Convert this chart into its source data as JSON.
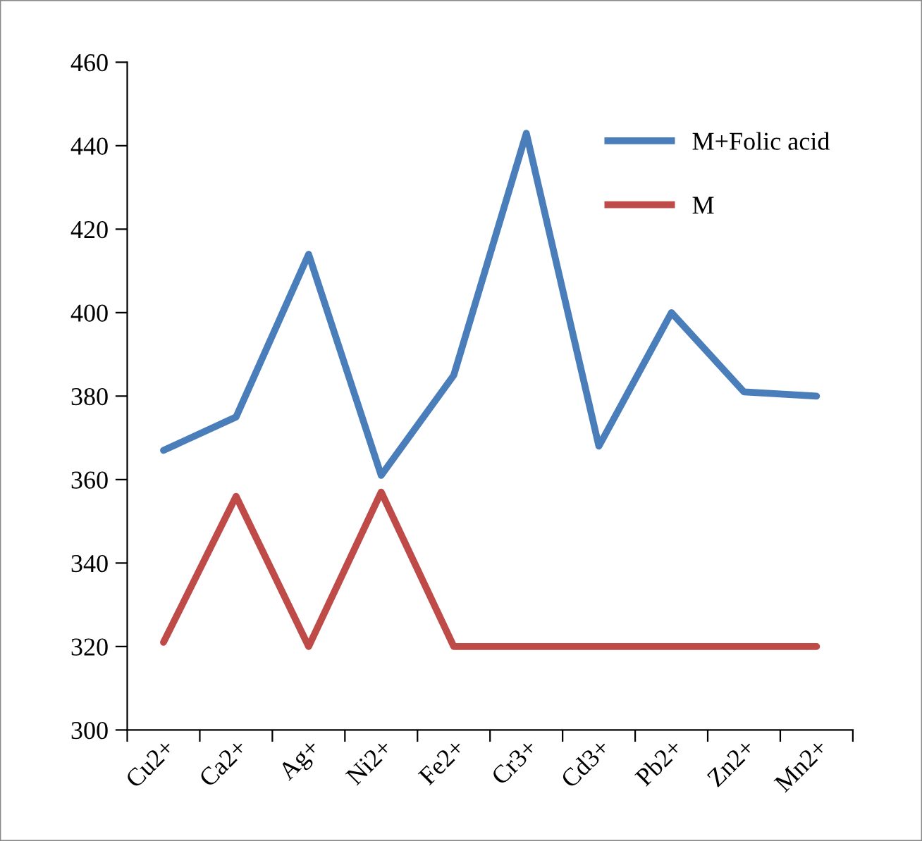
{
  "chart_data": {
    "type": "line",
    "categories": [
      "Cu2+",
      "Ca2+",
      "Ag+",
      "Ni2+",
      "Fe2+",
      "Cr3+",
      "Cd3+",
      "Pb2+",
      "Zn2+",
      "Mn2+"
    ],
    "series": [
      {
        "name": "M+Folic acid",
        "color": "#4a7ebb",
        "values": [
          367,
          375,
          414,
          361,
          385,
          443,
          368,
          400,
          381,
          380
        ]
      },
      {
        "name": "M",
        "color": "#be4b48",
        "values": [
          321,
          356,
          320,
          357,
          320,
          320,
          320,
          320,
          320,
          320
        ]
      }
    ],
    "ylim": [
      300,
      460
    ],
    "yticks": [
      300,
      320,
      340,
      360,
      380,
      400,
      420,
      440,
      460
    ],
    "grid": false,
    "legend": "top right",
    "marker": "none",
    "line_style": "solid"
  }
}
